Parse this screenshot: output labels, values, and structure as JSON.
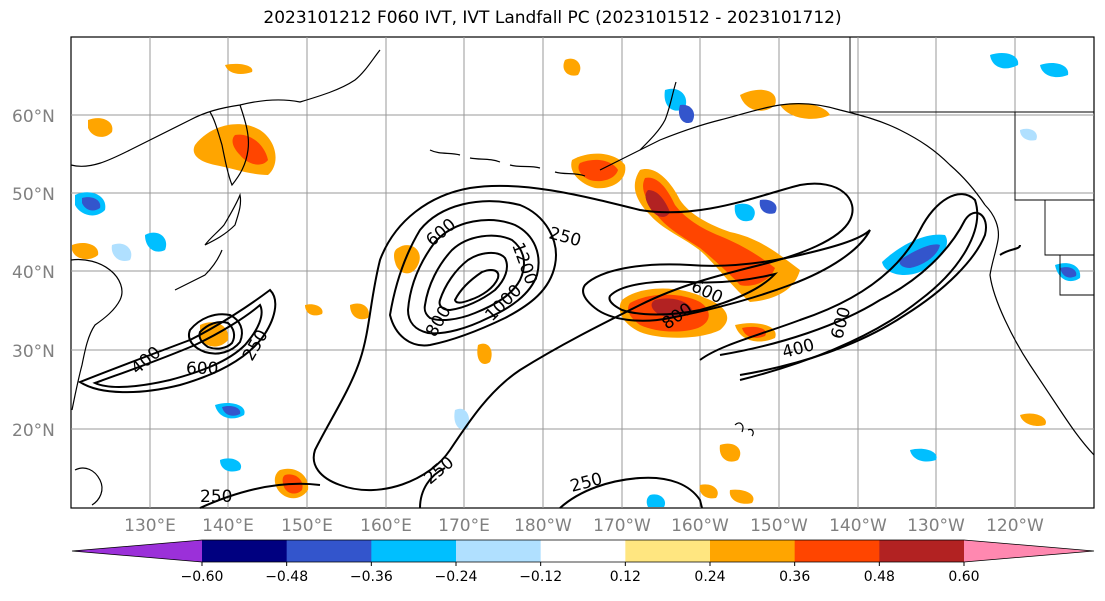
{
  "title": "2023101212 F060 IVT, IVT Landfall PC (2023101512 - 2023101712)",
  "lat_labels": [
    "20°N",
    "30°N",
    "40°N",
    "50°N",
    "60°N"
  ],
  "lon_labels": [
    "130°E",
    "140°E",
    "150°E",
    "160°E",
    "170°E",
    "180°W",
    "170°W",
    "160°W",
    "150°W",
    "140°W",
    "130°W",
    "120°W"
  ],
  "contour_labels": [
    "250",
    "250",
    "250",
    "250",
    "400",
    "400",
    "600",
    "600",
    "600",
    "800",
    "800",
    "1000",
    "1200",
    "250"
  ],
  "colorbar": {
    "ticks": [
      "−0.60",
      "−0.48",
      "−0.36",
      "−0.24",
      "−0.12",
      "0.12",
      "0.24",
      "0.36",
      "0.48",
      "0.60"
    ],
    "colors": [
      "#9b30d9",
      "#000080",
      "#3355cc",
      "#00bfff",
      "#b0e0ff",
      "#ffffff",
      "#ffe680",
      "#ffa500",
      "#ff4500",
      "#b22222",
      "#ff88b0"
    ]
  }
}
